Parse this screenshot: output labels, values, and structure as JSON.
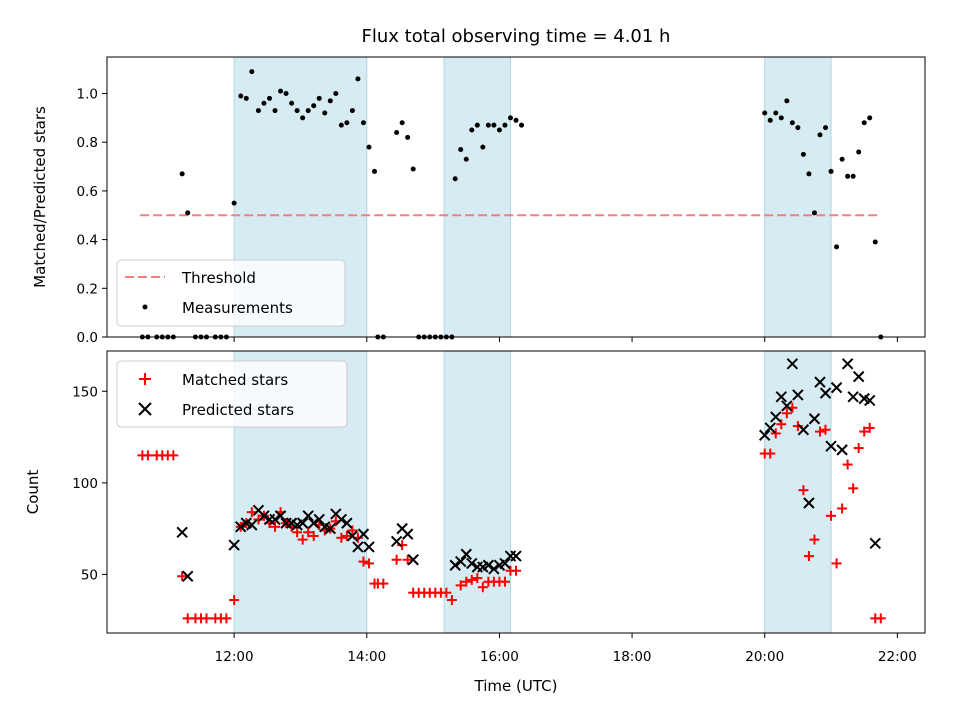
{
  "chart_data": [
    {
      "type": "scatter",
      "title": "Flux total observing time = 4.01 h",
      "xlabel": "",
      "ylabel": "Matched/Predicted stars",
      "x_unit": "Time (UTC)",
      "ylim": [
        0,
        1.15
      ],
      "yticks": [
        "0.0",
        "0.2",
        "0.4",
        "0.6",
        "0.8",
        "1.0"
      ],
      "ytick_values": [
        0,
        0.2,
        0.4,
        0.6,
        0.8,
        1.0
      ],
      "shaded_intervals": [
        [
          "12:00",
          "14:00"
        ],
        [
          "15:10",
          "16:10"
        ],
        [
          "20:00",
          "21:00"
        ]
      ],
      "threshold": {
        "name": "Threshold",
        "value": 0.5,
        "x_range": [
          "10:35",
          "21:45"
        ],
        "color": "#f08080"
      },
      "series": [
        {
          "name": "Measurements",
          "color": "#000000",
          "points": [
            [
              "10:37",
              0.0
            ],
            [
              "10:42",
              0.0
            ],
            [
              "10:50",
              0.0
            ],
            [
              "10:55",
              0.0
            ],
            [
              "11:00",
              0.0
            ],
            [
              "11:05",
              0.0
            ],
            [
              "11:13",
              0.67
            ],
            [
              "11:18",
              0.51
            ],
            [
              "11:25",
              0.0
            ],
            [
              "11:30",
              0.0
            ],
            [
              "11:35",
              0.0
            ],
            [
              "11:43",
              0.0
            ],
            [
              "11:48",
              0.0
            ],
            [
              "11:53",
              0.0
            ],
            [
              "12:00",
              0.55
            ],
            [
              "12:06",
              0.99
            ],
            [
              "12:11",
              0.98
            ],
            [
              "12:16",
              1.09
            ],
            [
              "12:22",
              0.93
            ],
            [
              "12:27",
              0.96
            ],
            [
              "12:32",
              0.98
            ],
            [
              "12:37",
              0.93
            ],
            [
              "12:42",
              1.01
            ],
            [
              "12:47",
              1.0
            ],
            [
              "12:52",
              0.96
            ],
            [
              "12:57",
              0.93
            ],
            [
              "13:02",
              0.9
            ],
            [
              "13:07",
              0.93
            ],
            [
              "13:12",
              0.95
            ],
            [
              "13:17",
              0.98
            ],
            [
              "13:22",
              0.92
            ],
            [
              "13:27",
              0.97
            ],
            [
              "13:32",
              1.0
            ],
            [
              "13:37",
              0.87
            ],
            [
              "13:42",
              0.88
            ],
            [
              "13:47",
              0.93
            ],
            [
              "13:52",
              1.06
            ],
            [
              "13:57",
              0.88
            ],
            [
              "14:02",
              0.78
            ],
            [
              "14:07",
              0.68
            ],
            [
              "14:10",
              0.0
            ],
            [
              "14:15",
              0.0
            ],
            [
              "14:27",
              0.84
            ],
            [
              "14:32",
              0.88
            ],
            [
              "14:37",
              0.82
            ],
            [
              "14:42",
              0.69
            ],
            [
              "14:47",
              0.0
            ],
            [
              "14:52",
              0.0
            ],
            [
              "14:57",
              0.0
            ],
            [
              "15:02",
              0.0
            ],
            [
              "15:07",
              0.0
            ],
            [
              "15:12",
              0.0
            ],
            [
              "15:17",
              0.0
            ],
            [
              "15:20",
              0.65
            ],
            [
              "15:25",
              0.77
            ],
            [
              "15:30",
              0.73
            ],
            [
              "15:35",
              0.85
            ],
            [
              "15:40",
              0.87
            ],
            [
              "15:45",
              0.78
            ],
            [
              "15:50",
              0.87
            ],
            [
              "15:55",
              0.87
            ],
            [
              "16:00",
              0.85
            ],
            [
              "16:05",
              0.87
            ],
            [
              "16:10",
              0.9
            ],
            [
              "16:15",
              0.89
            ],
            [
              "16:20",
              0.87
            ],
            [
              "20:00",
              0.92
            ],
            [
              "20:05",
              0.89
            ],
            [
              "20:10",
              0.92
            ],
            [
              "20:15",
              0.9
            ],
            [
              "20:20",
              0.97
            ],
            [
              "20:25",
              0.88
            ],
            [
              "20:30",
              0.86
            ],
            [
              "20:35",
              0.75
            ],
            [
              "20:40",
              0.67
            ],
            [
              "20:45",
              0.51
            ],
            [
              "20:50",
              0.83
            ],
            [
              "20:55",
              0.86
            ],
            [
              "21:00",
              0.68
            ],
            [
              "21:05",
              0.37
            ],
            [
              "21:10",
              0.73
            ],
            [
              "21:15",
              0.66
            ],
            [
              "21:20",
              0.66
            ],
            [
              "21:25",
              0.76
            ],
            [
              "21:30",
              0.88
            ],
            [
              "21:35",
              0.9
            ],
            [
              "21:40",
              0.39
            ],
            [
              "21:45",
              0.0
            ]
          ]
        }
      ]
    },
    {
      "type": "scatter",
      "title": "",
      "xlabel": "Time (UTC)",
      "ylabel": "Count",
      "ylim": [
        18,
        172
      ],
      "yticks": [
        "50",
        "100",
        "150"
      ],
      "ytick_values": [
        50,
        100,
        150
      ],
      "xticks": [
        "12:00",
        "14:00",
        "16:00",
        "18:00",
        "20:00",
        "22:00"
      ],
      "xlim": [
        "10:05",
        "22:25"
      ],
      "shaded_intervals": [
        [
          "12:00",
          "14:00"
        ],
        [
          "15:10",
          "16:10"
        ],
        [
          "20:00",
          "21:00"
        ]
      ],
      "series": [
        {
          "name": "Matched stars",
          "marker": "+",
          "color": "#ff0000",
          "points": [
            [
              "10:37",
              115
            ],
            [
              "10:42",
              115
            ],
            [
              "10:50",
              115
            ],
            [
              "10:55",
              115
            ],
            [
              "11:00",
              115
            ],
            [
              "11:05",
              115
            ],
            [
              "11:13",
              49
            ],
            [
              "11:18",
              26
            ],
            [
              "11:25",
              26
            ],
            [
              "11:30",
              26
            ],
            [
              "11:35",
              26
            ],
            [
              "11:43",
              26
            ],
            [
              "11:48",
              26
            ],
            [
              "11:53",
              26
            ],
            [
              "12:00",
              36
            ],
            [
              "12:06",
              76
            ],
            [
              "12:11",
              78
            ],
            [
              "12:16",
              84
            ],
            [
              "12:22",
              80
            ],
            [
              "12:27",
              82
            ],
            [
              "12:32",
              78
            ],
            [
              "12:37",
              76
            ],
            [
              "12:42",
              84
            ],
            [
              "12:47",
              78
            ],
            [
              "12:52",
              76
            ],
            [
              "12:57",
              73
            ],
            [
              "13:02",
              69
            ],
            [
              "13:07",
              73
            ],
            [
              "13:12",
              71
            ],
            [
              "13:17",
              77
            ],
            [
              "13:22",
              74
            ],
            [
              "13:27",
              75
            ],
            [
              "13:32",
              79
            ],
            [
              "13:37",
              70
            ],
            [
              "13:42",
              71
            ],
            [
              "13:47",
              74
            ],
            [
              "13:52",
              70
            ],
            [
              "13:57",
              57
            ],
            [
              "14:02",
              56
            ],
            [
              "14:07",
              45
            ],
            [
              "14:10",
              45
            ],
            [
              "14:15",
              45
            ],
            [
              "14:27",
              58
            ],
            [
              "14:32",
              66
            ],
            [
              "14:37",
              58
            ],
            [
              "14:42",
              40
            ],
            [
              "14:47",
              40
            ],
            [
              "14:52",
              40
            ],
            [
              "14:57",
              40
            ],
            [
              "15:02",
              40
            ],
            [
              "15:07",
              40
            ],
            [
              "15:12",
              40
            ],
            [
              "15:17",
              36
            ],
            [
              "15:25",
              44
            ],
            [
              "15:30",
              46
            ],
            [
              "15:35",
              47
            ],
            [
              "15:40",
              48
            ],
            [
              "15:45",
              43
            ],
            [
              "15:50",
              46
            ],
            [
              "15:55",
              46
            ],
            [
              "16:00",
              46
            ],
            [
              "16:05",
              46
            ],
            [
              "16:10",
              52
            ],
            [
              "16:15",
              52
            ],
            [
              "20:00",
              116
            ],
            [
              "20:05",
              116
            ],
            [
              "20:10",
              127
            ],
            [
              "20:15",
              132
            ],
            [
              "20:20",
              138
            ],
            [
              "20:25",
              141
            ],
            [
              "20:30",
              131
            ],
            [
              "20:35",
              96
            ],
            [
              "20:40",
              60
            ],
            [
              "20:45",
              69
            ],
            [
              "20:50",
              128
            ],
            [
              "20:55",
              129
            ],
            [
              "21:00",
              82
            ],
            [
              "21:05",
              56
            ],
            [
              "21:10",
              86
            ],
            [
              "21:15",
              110
            ],
            [
              "21:20",
              97
            ],
            [
              "21:25",
              119
            ],
            [
              "21:30",
              128
            ],
            [
              "21:35",
              130
            ],
            [
              "21:40",
              26
            ],
            [
              "21:45",
              26
            ]
          ]
        },
        {
          "name": "Predicted stars",
          "marker": "x",
          "color": "#000000",
          "points": [
            [
              "11:13",
              73
            ],
            [
              "11:18",
              49
            ],
            [
              "12:00",
              66
            ],
            [
              "12:06",
              76
            ],
            [
              "12:11",
              78
            ],
            [
              "12:16",
              77
            ],
            [
              "12:22",
              85
            ],
            [
              "12:27",
              82
            ],
            [
              "12:32",
              80
            ],
            [
              "12:37",
              80
            ],
            [
              "12:42",
              82
            ],
            [
              "12:47",
              78
            ],
            [
              "12:52",
              78
            ],
            [
              "12:57",
              77
            ],
            [
              "13:02",
              78
            ],
            [
              "13:07",
              82
            ],
            [
              "13:12",
              78
            ],
            [
              "13:17",
              80
            ],
            [
              "13:22",
              76
            ],
            [
              "13:27",
              75
            ],
            [
              "13:32",
              83
            ],
            [
              "13:37",
              80
            ],
            [
              "13:42",
              78
            ],
            [
              "13:47",
              71
            ],
            [
              "13:52",
              65
            ],
            [
              "13:57",
              72
            ],
            [
              "14:02",
              65
            ],
            [
              "14:27",
              68
            ],
            [
              "14:32",
              75
            ],
            [
              "14:37",
              72
            ],
            [
              "14:42",
              58
            ],
            [
              "15:20",
              55
            ],
            [
              "15:25",
              57
            ],
            [
              "15:30",
              61
            ],
            [
              "15:35",
              56
            ],
            [
              "15:40",
              54
            ],
            [
              "15:45",
              54
            ],
            [
              "15:50",
              55
            ],
            [
              "15:55",
              53
            ],
            [
              "16:00",
              55
            ],
            [
              "16:05",
              56
            ],
            [
              "16:10",
              60
            ],
            [
              "16:15",
              60
            ],
            [
              "20:00",
              126
            ],
            [
              "20:05",
              130
            ],
            [
              "20:10",
              136
            ],
            [
              "20:15",
              147
            ],
            [
              "20:20",
              142
            ],
            [
              "20:25",
              165
            ],
            [
              "20:30",
              148
            ],
            [
              "20:35",
              129
            ],
            [
              "20:40",
              89
            ],
            [
              "20:45",
              135
            ],
            [
              "20:50",
              155
            ],
            [
              "20:55",
              149
            ],
            [
              "21:00",
              120
            ],
            [
              "21:05",
              152
            ],
            [
              "21:10",
              118
            ],
            [
              "21:15",
              165
            ],
            [
              "21:20",
              147
            ],
            [
              "21:25",
              158
            ],
            [
              "21:30",
              146
            ],
            [
              "21:35",
              145
            ],
            [
              "21:40",
              67
            ]
          ]
        }
      ]
    }
  ]
}
